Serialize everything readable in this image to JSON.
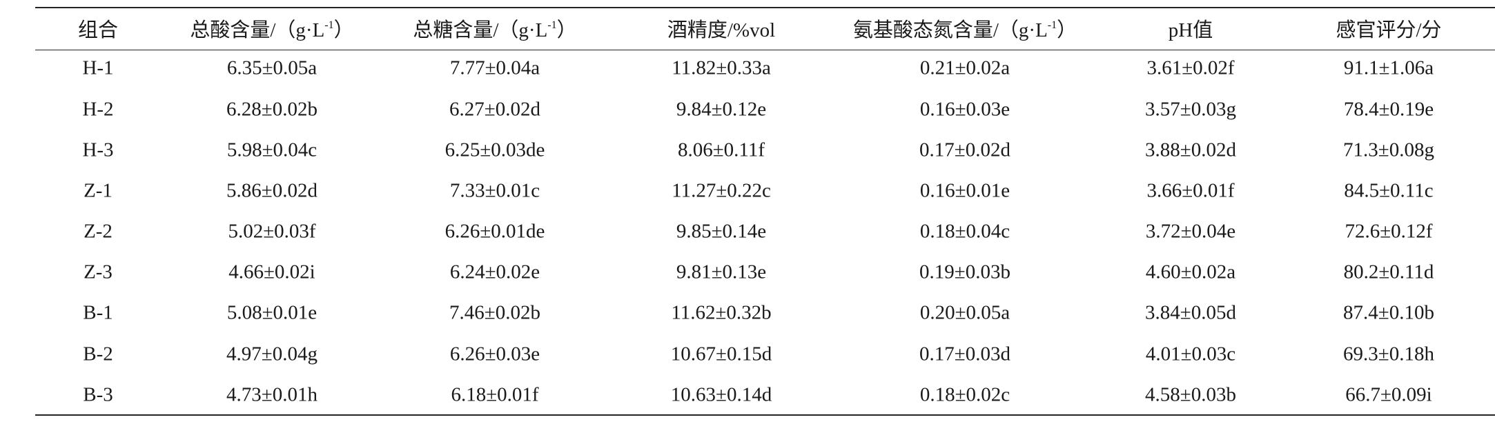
{
  "table": {
    "header": [
      [
        "组合"
      ],
      [
        "总酸含量/（g·L",
        "-1",
        "）"
      ],
      [
        "总糖含量/（g·L",
        "-1",
        "）"
      ],
      [
        "酒精度/%vol"
      ],
      [
        "氨基酸态氮含量/（g·L",
        "-1",
        "）"
      ],
      [
        "pH值"
      ],
      [
        "感官评分/分"
      ]
    ],
    "rows": [
      [
        "H-1",
        "6.35±0.05a",
        "7.77±0.04a",
        "11.82±0.33a",
        "0.21±0.02a",
        "3.61±0.02f",
        "91.1±1.06a"
      ],
      [
        "H-2",
        "6.28±0.02b",
        "6.27±0.02d",
        "9.84±0.12e",
        "0.16±0.03e",
        "3.57±0.03g",
        "78.4±0.19e"
      ],
      [
        "H-3",
        "5.98±0.04c",
        "6.25±0.03de",
        "8.06±0.11f",
        "0.17±0.02d",
        "3.88±0.02d",
        "71.3±0.08g"
      ],
      [
        "Z-1",
        "5.86±0.02d",
        "7.33±0.01c",
        "11.27±0.22c",
        "0.16±0.01e",
        "3.66±0.01f",
        "84.5±0.11c"
      ],
      [
        "Z-2",
        "5.02±0.03f",
        "6.26±0.01de",
        "9.85±0.14e",
        "0.18±0.04c",
        "3.72±0.04e",
        "72.6±0.12f"
      ],
      [
        "Z-3",
        "4.66±0.02i",
        "6.24±0.02e",
        "9.81±0.13e",
        "0.19±0.03b",
        "4.60±0.02a",
        "80.2±0.11d"
      ],
      [
        "B-1",
        "5.08±0.01e",
        "7.46±0.02b",
        "11.62±0.32b",
        "0.20±0.05a",
        "3.84±0.05d",
        "87.4±0.10b"
      ],
      [
        "B-2",
        "4.97±0.04g",
        "6.26±0.03e",
        "10.67±0.15d",
        "0.17±0.03d",
        "4.01±0.03c",
        "69.3±0.18h"
      ],
      [
        "B-3",
        "4.73±0.01h",
        "6.18±0.01f",
        "10.63±0.14d",
        "0.18±0.02c",
        "4.58±0.03b",
        "66.7±0.09i"
      ]
    ]
  }
}
